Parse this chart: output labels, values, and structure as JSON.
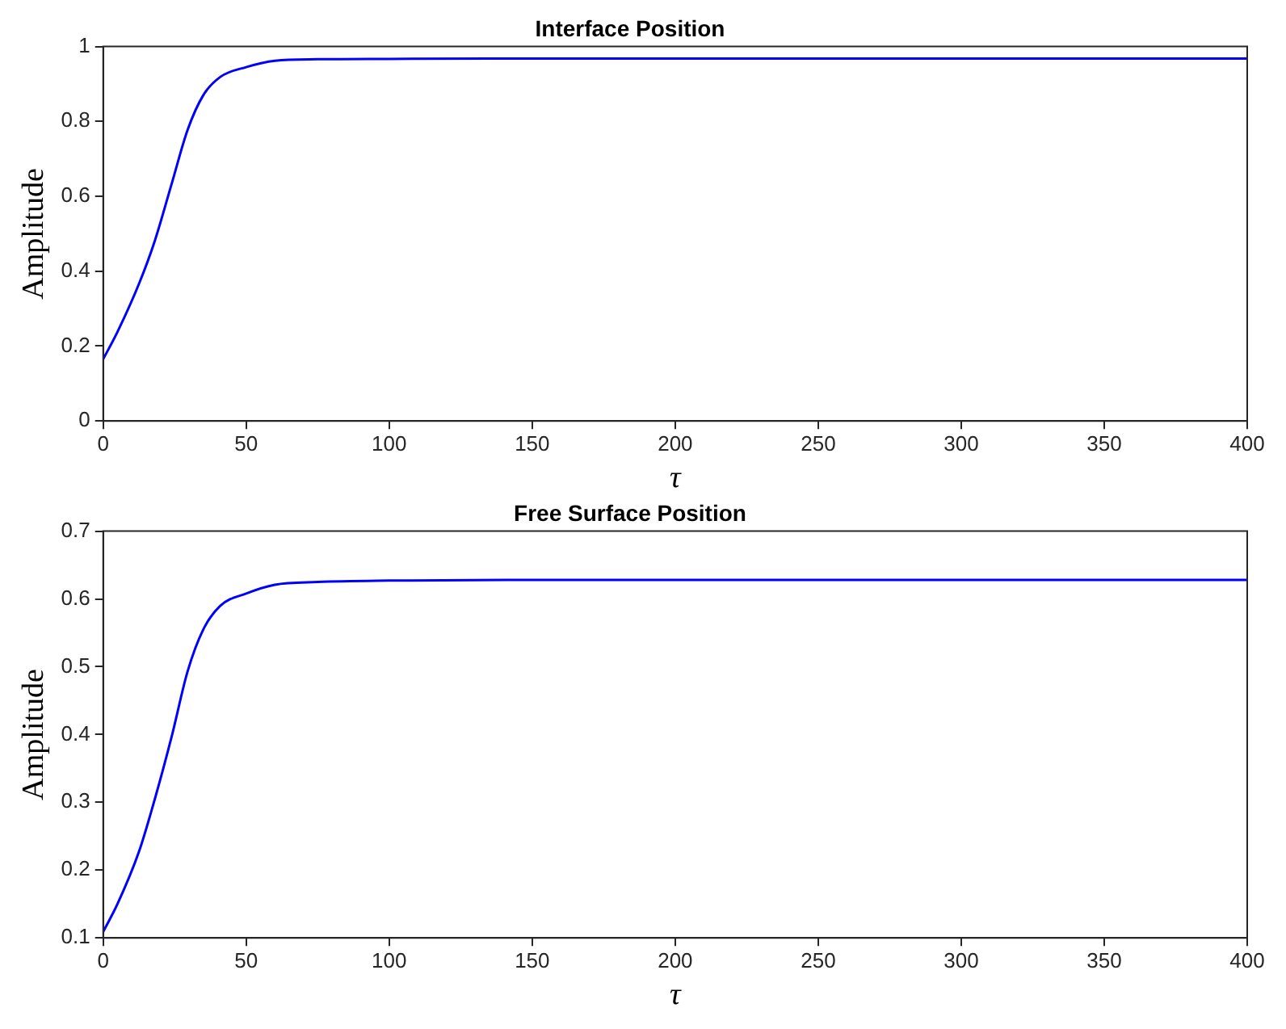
{
  "chart_data": [
    {
      "type": "line",
      "title": "Interface Position",
      "xlabel": "τ",
      "ylabel": "Amplitude",
      "xlim": [
        0,
        400
      ],
      "xticks": [
        0,
        50,
        100,
        150,
        200,
        250,
        300,
        350,
        400
      ],
      "ylim": [
        0,
        1
      ],
      "yticks": [
        0,
        0.2,
        0.4,
        0.6,
        0.8,
        1
      ],
      "grid": false,
      "legend": false,
      "marker": "none",
      "line_style": "solid",
      "series": [
        {
          "color": "#0000ff",
          "x": [
            0,
            5,
            12.5,
            18,
            24,
            29.5,
            35,
            41,
            50,
            60,
            75,
            100,
            150,
            200,
            300,
            400
          ],
          "values": [
            0.165,
            0.238,
            0.366,
            0.48,
            0.635,
            0.777,
            0.87,
            0.919,
            0.945,
            0.962,
            0.966,
            0.967,
            0.968,
            0.968,
            0.968,
            0.968
          ]
        }
      ]
    },
    {
      "type": "line",
      "title": "Free Surface Position",
      "xlabel": "τ",
      "ylabel": "Amplitude",
      "xlim": [
        0,
        400
      ],
      "xticks": [
        0,
        50,
        100,
        150,
        200,
        250,
        300,
        350,
        400
      ],
      "ylim": [
        0.1,
        0.7
      ],
      "yticks": [
        0.1,
        0.2,
        0.3,
        0.4,
        0.5,
        0.6,
        0.7
      ],
      "grid": false,
      "legend": false,
      "marker": "none",
      "line_style": "solid",
      "series": [
        {
          "color": "#0000ff",
          "x": [
            0,
            5,
            12.5,
            18,
            24,
            29.5,
            35,
            41,
            50,
            60,
            75,
            100,
            150,
            200,
            300,
            400
          ],
          "values": [
            0.109,
            0.15,
            0.227,
            0.304,
            0.398,
            0.493,
            0.555,
            0.59,
            0.608,
            0.621,
            0.625,
            0.627,
            0.628,
            0.628,
            0.628,
            0.628
          ]
        }
      ]
    }
  ]
}
